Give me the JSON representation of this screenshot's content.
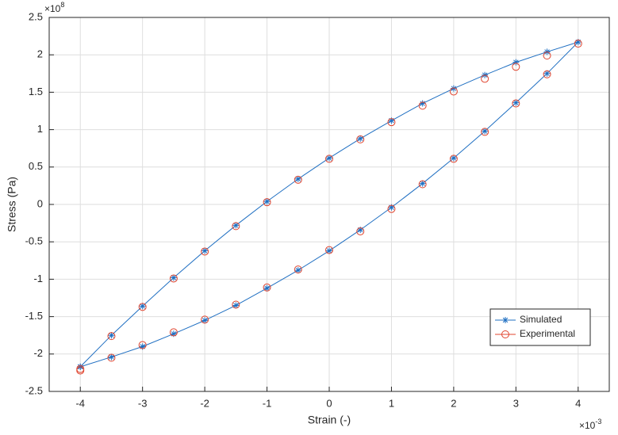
{
  "chart_data": {
    "type": "scatter",
    "x_label": "Strain (-)",
    "y_label": "Stress (Pa)",
    "x_multiplier": {
      "base": "×10",
      "exponent": "-3"
    },
    "y_multiplier": {
      "base": "×10",
      "exponent": "8"
    },
    "xlim": [
      -4.5,
      4.5
    ],
    "xticks": [
      -4,
      -3,
      -2,
      -1,
      0,
      1,
      2,
      3,
      4
    ],
    "ylim": [
      -2.5,
      2.5
    ],
    "yticks": [
      -2.5,
      -2,
      -1.5,
      -1,
      -0.5,
      0,
      0.5,
      1,
      1.5,
      2,
      2.5
    ],
    "grid": true,
    "legend": "lower right",
    "series": [
      {
        "name": "Simulated",
        "color": "#1f6fc2",
        "marker": "star",
        "line": true,
        "x": [
          -4,
          -3.5,
          -3,
          -2.5,
          -2,
          -1.5,
          -1,
          -0.5,
          0,
          0.5,
          1,
          1.5,
          2,
          2.5,
          3,
          3.5,
          4,
          3.5,
          3,
          2.5,
          2,
          1.5,
          1,
          0.5,
          0,
          -0.5,
          -1,
          -1.5,
          -2,
          -2.5,
          -3,
          -3.5,
          -4
        ],
        "values": [
          -2.17,
          -2.04,
          -1.9,
          -1.73,
          -1.55,
          -1.35,
          -1.12,
          -0.88,
          -0.62,
          -0.34,
          -0.04,
          0.28,
          0.62,
          0.98,
          1.36,
          1.75,
          2.17,
          2.04,
          1.9,
          1.73,
          1.55,
          1.35,
          1.12,
          0.88,
          0.62,
          0.34,
          0.04,
          -0.28,
          -0.62,
          -0.98,
          -1.36,
          -1.75,
          -2.17
        ]
      },
      {
        "name": "Experimental",
        "color": "#e0452f",
        "marker": "circle",
        "line": false,
        "x": [
          -4,
          -3.5,
          -3,
          -2.5,
          -2,
          -1.5,
          -1,
          -0.5,
          0,
          0.5,
          1,
          1.5,
          2,
          2.5,
          3,
          3.5,
          4,
          3.5,
          3,
          2.5,
          2,
          1.5,
          1,
          0.5,
          0,
          -0.5,
          -1,
          -1.5,
          -2,
          -2.5,
          -3,
          -3.5,
          -4
        ],
        "values": [
          -2.22,
          -2.05,
          -1.88,
          -1.71,
          -1.54,
          -1.34,
          -1.11,
          -0.87,
          -0.61,
          -0.36,
          -0.06,
          0.27,
          0.61,
          0.97,
          1.35,
          1.74,
          2.15,
          1.99,
          1.84,
          1.68,
          1.51,
          1.32,
          1.1,
          0.87,
          0.61,
          0.33,
          0.03,
          -0.29,
          -0.63,
          -0.99,
          -1.37,
          -1.76,
          -2.2
        ]
      }
    ]
  }
}
